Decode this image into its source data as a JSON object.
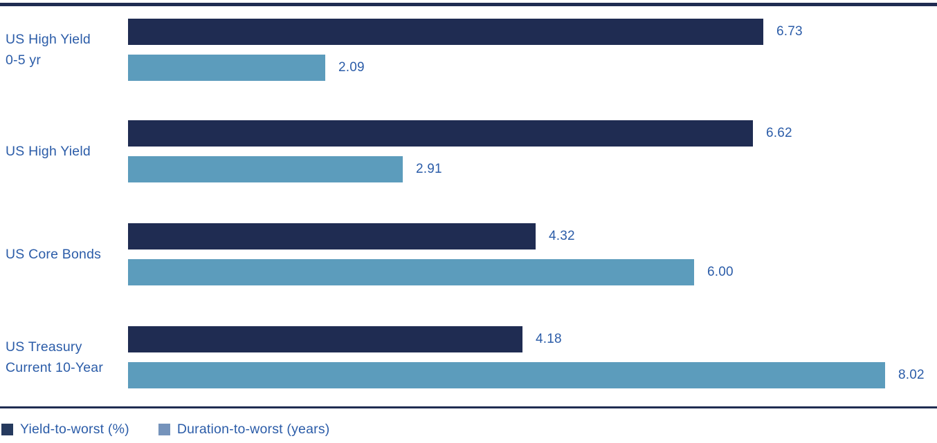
{
  "chart_data": {
    "type": "bar",
    "orientation": "horizontal",
    "title": "",
    "xlabel": "",
    "ylabel": "",
    "xlim": [
      0,
      8.6
    ],
    "grid": false,
    "axes_hidden": true,
    "value_labels": true,
    "legend_position": "bottom-left",
    "categories": [
      "US High Yield 0-5 yr",
      "US High Yield",
      "US Core Bonds",
      "US Treasury Current 10-Year"
    ],
    "category_lines": [
      [
        "US High Yield",
        "0-5 yr"
      ],
      [
        "US High Yield",
        ""
      ],
      [
        "US Core Bonds",
        ""
      ],
      [
        "US Treasury",
        "Current 10-Year"
      ]
    ],
    "series": [
      {
        "name": "Yield-to-worst (%)",
        "color": "#1F2C52",
        "values": [
          6.73,
          6.62,
          4.32,
          4.18
        ],
        "labels": [
          "6.73",
          "6.62",
          "4.32",
          "4.18"
        ]
      },
      {
        "name": "Duration-to-worst (years)",
        "color": "#5C9CBC",
        "values": [
          2.09,
          2.91,
          6.0,
          8.02
        ],
        "labels": [
          "2.09",
          "2.91",
          "6.00",
          "8.02"
        ]
      }
    ]
  },
  "legend": {
    "items": [
      {
        "label": "Yield-to-worst (%)",
        "swatch_color": "#263A5E"
      },
      {
        "label": "Duration-to-worst (years)",
        "swatch_color": "#7593BB"
      }
    ]
  },
  "colors": {
    "divider": "#1F2C52",
    "text_blue": "#2B5CA8",
    "background": "#FFFFFF"
  }
}
